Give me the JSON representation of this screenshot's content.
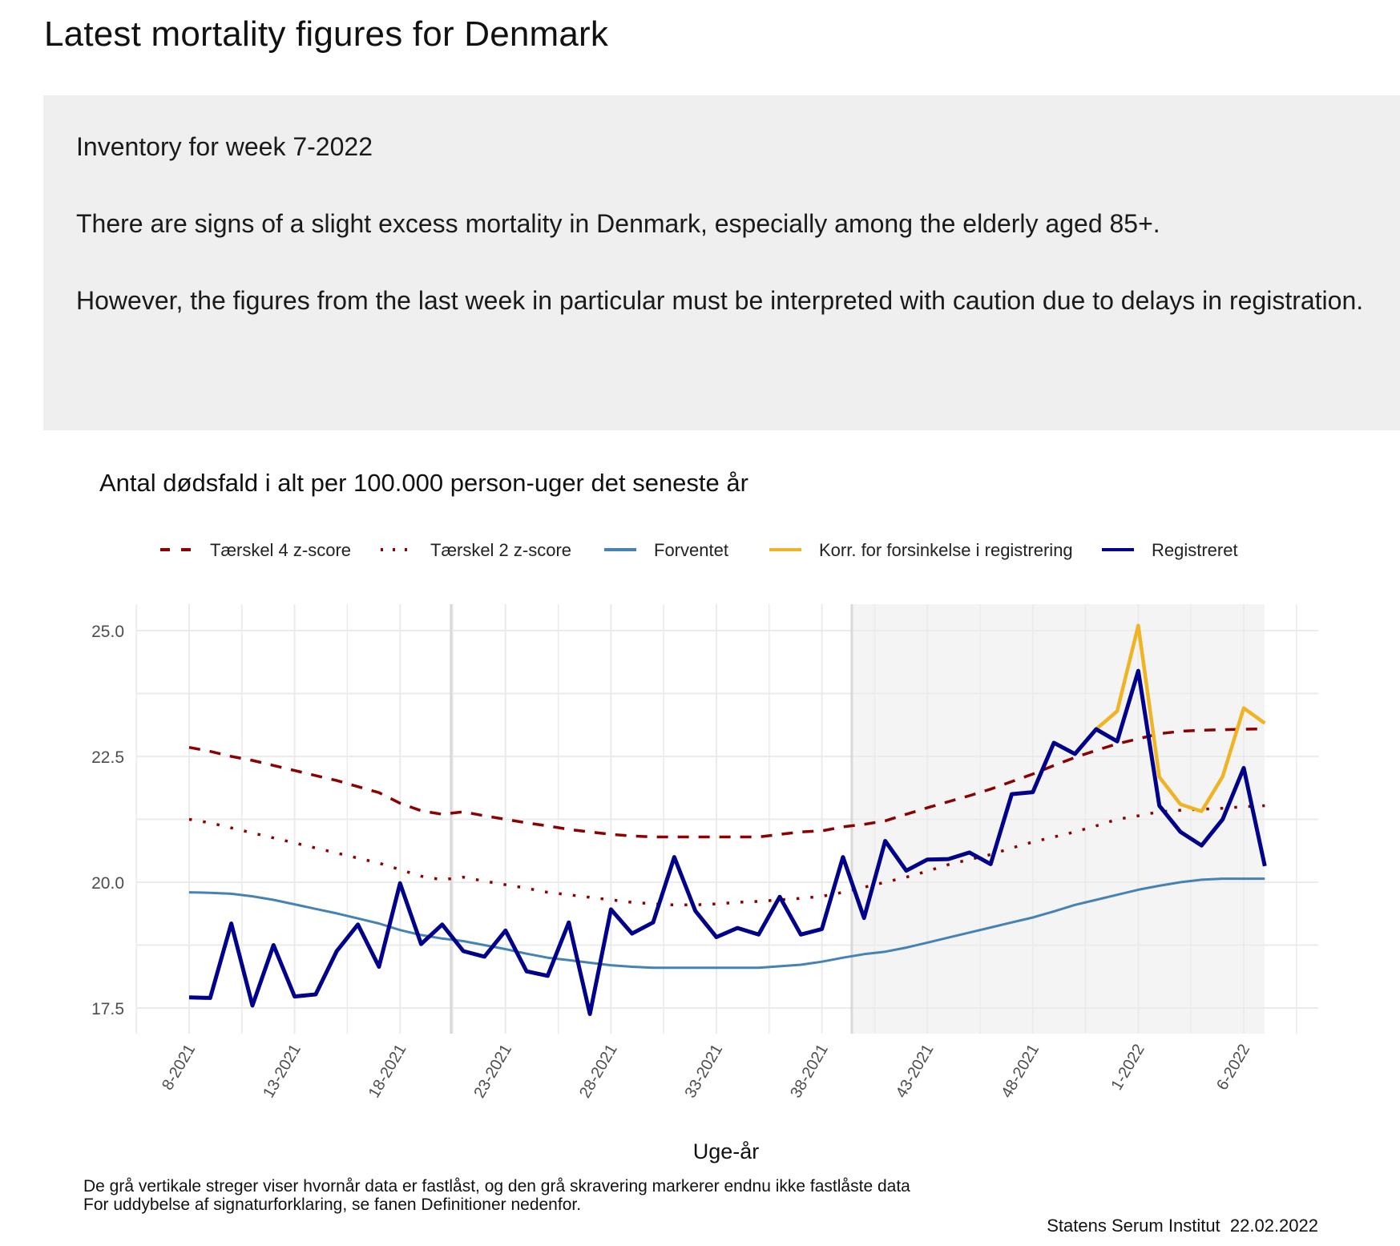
{
  "page": {
    "title": "Latest mortality figures for Denmark",
    "info": {
      "heading": "Inventory for week 7-2022",
      "paragraph1": "There are signs of a slight excess mortality in Denmark, especially among the elderly aged 85+.",
      "paragraph2": "However, the figures from the last week in particular must be interpreted with caution due to delays in registration."
    }
  },
  "chart_data": {
    "type": "line",
    "title": "Antal dødsfald i alt per 100.000 person-uger det seneste år",
    "xlabel": "Uge-år",
    "ylabel": "",
    "ylim": [
      17,
      25.5
    ],
    "yticks": [
      "17.5",
      "20.0",
      "22.5",
      "25.0"
    ],
    "ytick_values": [
      17.5,
      20.0,
      22.5,
      25.0
    ],
    "grid": true,
    "legend_position": "top",
    "x": [
      "8-2021",
      "9-2021",
      "10-2021",
      "11-2021",
      "12-2021",
      "13-2021",
      "14-2021",
      "15-2021",
      "16-2021",
      "17-2021",
      "18-2021",
      "19-2021",
      "20-2021",
      "21-2021",
      "22-2021",
      "23-2021",
      "24-2021",
      "25-2021",
      "26-2021",
      "27-2021",
      "28-2021",
      "29-2021",
      "30-2021",
      "31-2021",
      "32-2021",
      "33-2021",
      "34-2021",
      "35-2021",
      "36-2021",
      "37-2021",
      "38-2021",
      "39-2021",
      "40-2021",
      "41-2021",
      "42-2021",
      "43-2021",
      "44-2021",
      "45-2021",
      "46-2021",
      "47-2021",
      "48-2021",
      "49-2021",
      "50-2021",
      "51-2021",
      "52-2021",
      "1-2022",
      "2-2022",
      "3-2022",
      "4-2022",
      "5-2022",
      "6-2022",
      "7-2022"
    ],
    "xtick_labels": [
      "8-2021",
      "13-2021",
      "18-2021",
      "23-2021",
      "28-2021",
      "33-2021",
      "38-2021",
      "43-2021",
      "48-2021",
      "1-2022",
      "6-2022"
    ],
    "locked_data_lines_after": [
      "20-2021",
      "39-2021"
    ],
    "unlocked_shading_from": "39-2021",
    "series": [
      {
        "name": "Tærskel 4 z-score",
        "color": "#8b0000",
        "style": "dashed",
        "values": [
          22.68,
          22.6,
          22.5,
          22.42,
          22.32,
          22.22,
          22.12,
          22.02,
          21.9,
          21.78,
          21.57,
          21.42,
          21.35,
          21.4,
          21.32,
          21.25,
          21.18,
          21.12,
          21.05,
          21.0,
          20.95,
          20.92,
          20.9,
          20.9,
          20.9,
          20.9,
          20.9,
          20.9,
          20.95,
          21.0,
          21.02,
          21.1,
          21.15,
          21.22,
          21.35,
          21.48,
          21.6,
          21.72,
          21.85,
          22.0,
          22.15,
          22.32,
          22.48,
          22.62,
          22.75,
          22.85,
          22.95,
          23.0,
          23.02,
          23.03,
          23.04,
          23.05
        ]
      },
      {
        "name": "Tærskel 2 z-score",
        "color": "#8b0000",
        "style": "dotted",
        "values": [
          21.25,
          21.18,
          21.08,
          20.98,
          20.88,
          20.78,
          20.68,
          20.58,
          20.48,
          20.38,
          20.25,
          20.12,
          20.05,
          20.1,
          20.02,
          19.95,
          19.88,
          19.8,
          19.75,
          19.7,
          19.65,
          19.6,
          19.57,
          19.55,
          19.55,
          19.57,
          19.6,
          19.62,
          19.65,
          19.68,
          19.72,
          19.8,
          19.9,
          20.0,
          20.1,
          20.22,
          20.35,
          20.45,
          20.55,
          20.68,
          20.8,
          20.9,
          21.0,
          21.12,
          21.25,
          21.32,
          21.4,
          21.43,
          21.45,
          21.47,
          21.5,
          21.52
        ]
      },
      {
        "name": "Forventet",
        "color": "#4682b4",
        "style": "solid",
        "values": [
          19.8,
          19.79,
          19.77,
          19.72,
          19.65,
          19.56,
          19.47,
          19.38,
          19.28,
          19.18,
          19.05,
          18.95,
          18.88,
          18.83,
          18.75,
          18.67,
          18.58,
          18.5,
          18.45,
          18.4,
          18.35,
          18.32,
          18.3,
          18.3,
          18.3,
          18.3,
          18.3,
          18.3,
          18.33,
          18.36,
          18.42,
          18.5,
          18.57,
          18.62,
          18.7,
          18.8,
          18.9,
          19.0,
          19.1,
          19.2,
          19.3,
          19.42,
          19.55,
          19.65,
          19.75,
          19.85,
          19.93,
          20.0,
          20.05,
          20.07,
          20.07,
          20.07
        ]
      },
      {
        "name": "Korr. for forsinkelse i registrering",
        "color": "#f0b323",
        "style": "solid",
        "values": [
          null,
          null,
          null,
          null,
          null,
          null,
          null,
          null,
          null,
          null,
          null,
          null,
          null,
          null,
          null,
          null,
          null,
          null,
          null,
          null,
          null,
          null,
          null,
          null,
          null,
          null,
          null,
          null,
          null,
          null,
          null,
          null,
          null,
          null,
          null,
          null,
          null,
          null,
          null,
          null,
          null,
          null,
          null,
          23.04,
          23.4,
          25.1,
          22.09,
          21.55,
          21.41,
          22.1,
          23.46,
          23.16
        ]
      },
      {
        "name": "Registreret",
        "color": "#00008b",
        "style": "solid",
        "values": [
          17.71,
          17.7,
          19.18,
          17.55,
          18.75,
          17.73,
          17.77,
          18.63,
          19.16,
          18.32,
          19.98,
          18.77,
          19.16,
          18.63,
          18.52,
          19.04,
          18.23,
          18.14,
          19.2,
          17.38,
          19.46,
          18.98,
          19.2,
          20.5,
          19.43,
          18.91,
          19.09,
          18.96,
          19.71,
          18.96,
          19.07,
          20.5,
          19.29,
          20.82,
          20.23,
          20.45,
          20.46,
          20.59,
          20.36,
          21.75,
          21.79,
          22.77,
          22.55,
          23.04,
          22.8,
          24.2,
          21.52,
          21.0,
          20.73,
          21.25,
          22.27,
          20.32
        ]
      }
    ],
    "footnotes": [
      "De grå vertikale streger viser hvornår data er fastlåst, og den grå skravering markerer endnu ikke fastlåste data",
      "For uddybelse af signaturforklaring, se fanen Definitioner nedenfor."
    ],
    "source": "Statens Serum Institut  22.02.2022"
  }
}
